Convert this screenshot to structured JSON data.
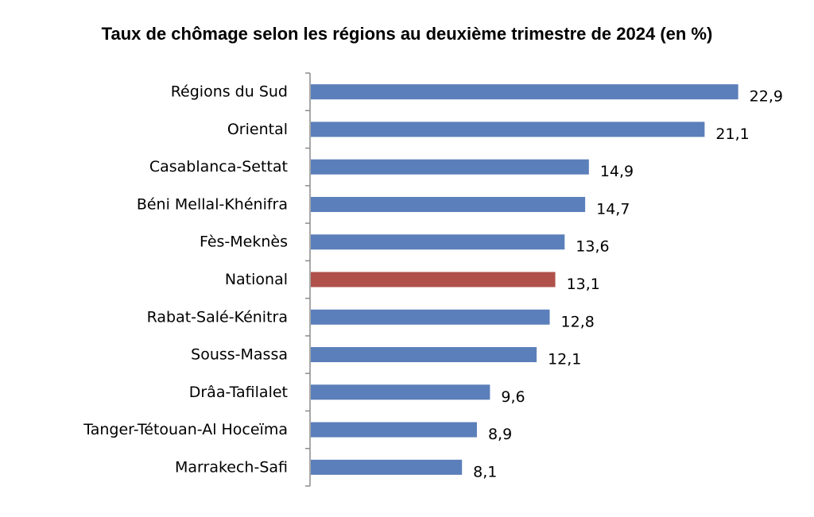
{
  "chart_data": {
    "type": "bar",
    "orientation": "horizontal",
    "title": "Taux de chômage selon les régions au deuxième trimestre de 2024 (en %)",
    "xlabel": "",
    "ylabel": "",
    "xlim": [
      0,
      23
    ],
    "grid": false,
    "categories": [
      "Régions du Sud",
      "Oriental",
      "Casablanca-Settat",
      "Béni Mellal-Khénifra",
      "Fès-Meknès",
      "National",
      "Rabat-Salé-Kénitra",
      "Souss-Massa",
      "Drâa-Tafilalet",
      "Tanger-Tétouan-Al Hoceïma",
      "Marrakech-Safi"
    ],
    "values": [
      22.9,
      21.1,
      14.9,
      14.7,
      13.6,
      13.1,
      12.8,
      12.1,
      9.6,
      8.9,
      8.1
    ],
    "value_labels": [
      "22,9",
      "21,1",
      "14,9",
      "14,7",
      "13,6",
      "13,1",
      "12,8",
      "12,1",
      "9,6",
      "8,9",
      "8,1"
    ],
    "colors": {
      "default": "#5B7FBA",
      "highlight": "#B0524B",
      "highlight_category": "National"
    }
  }
}
